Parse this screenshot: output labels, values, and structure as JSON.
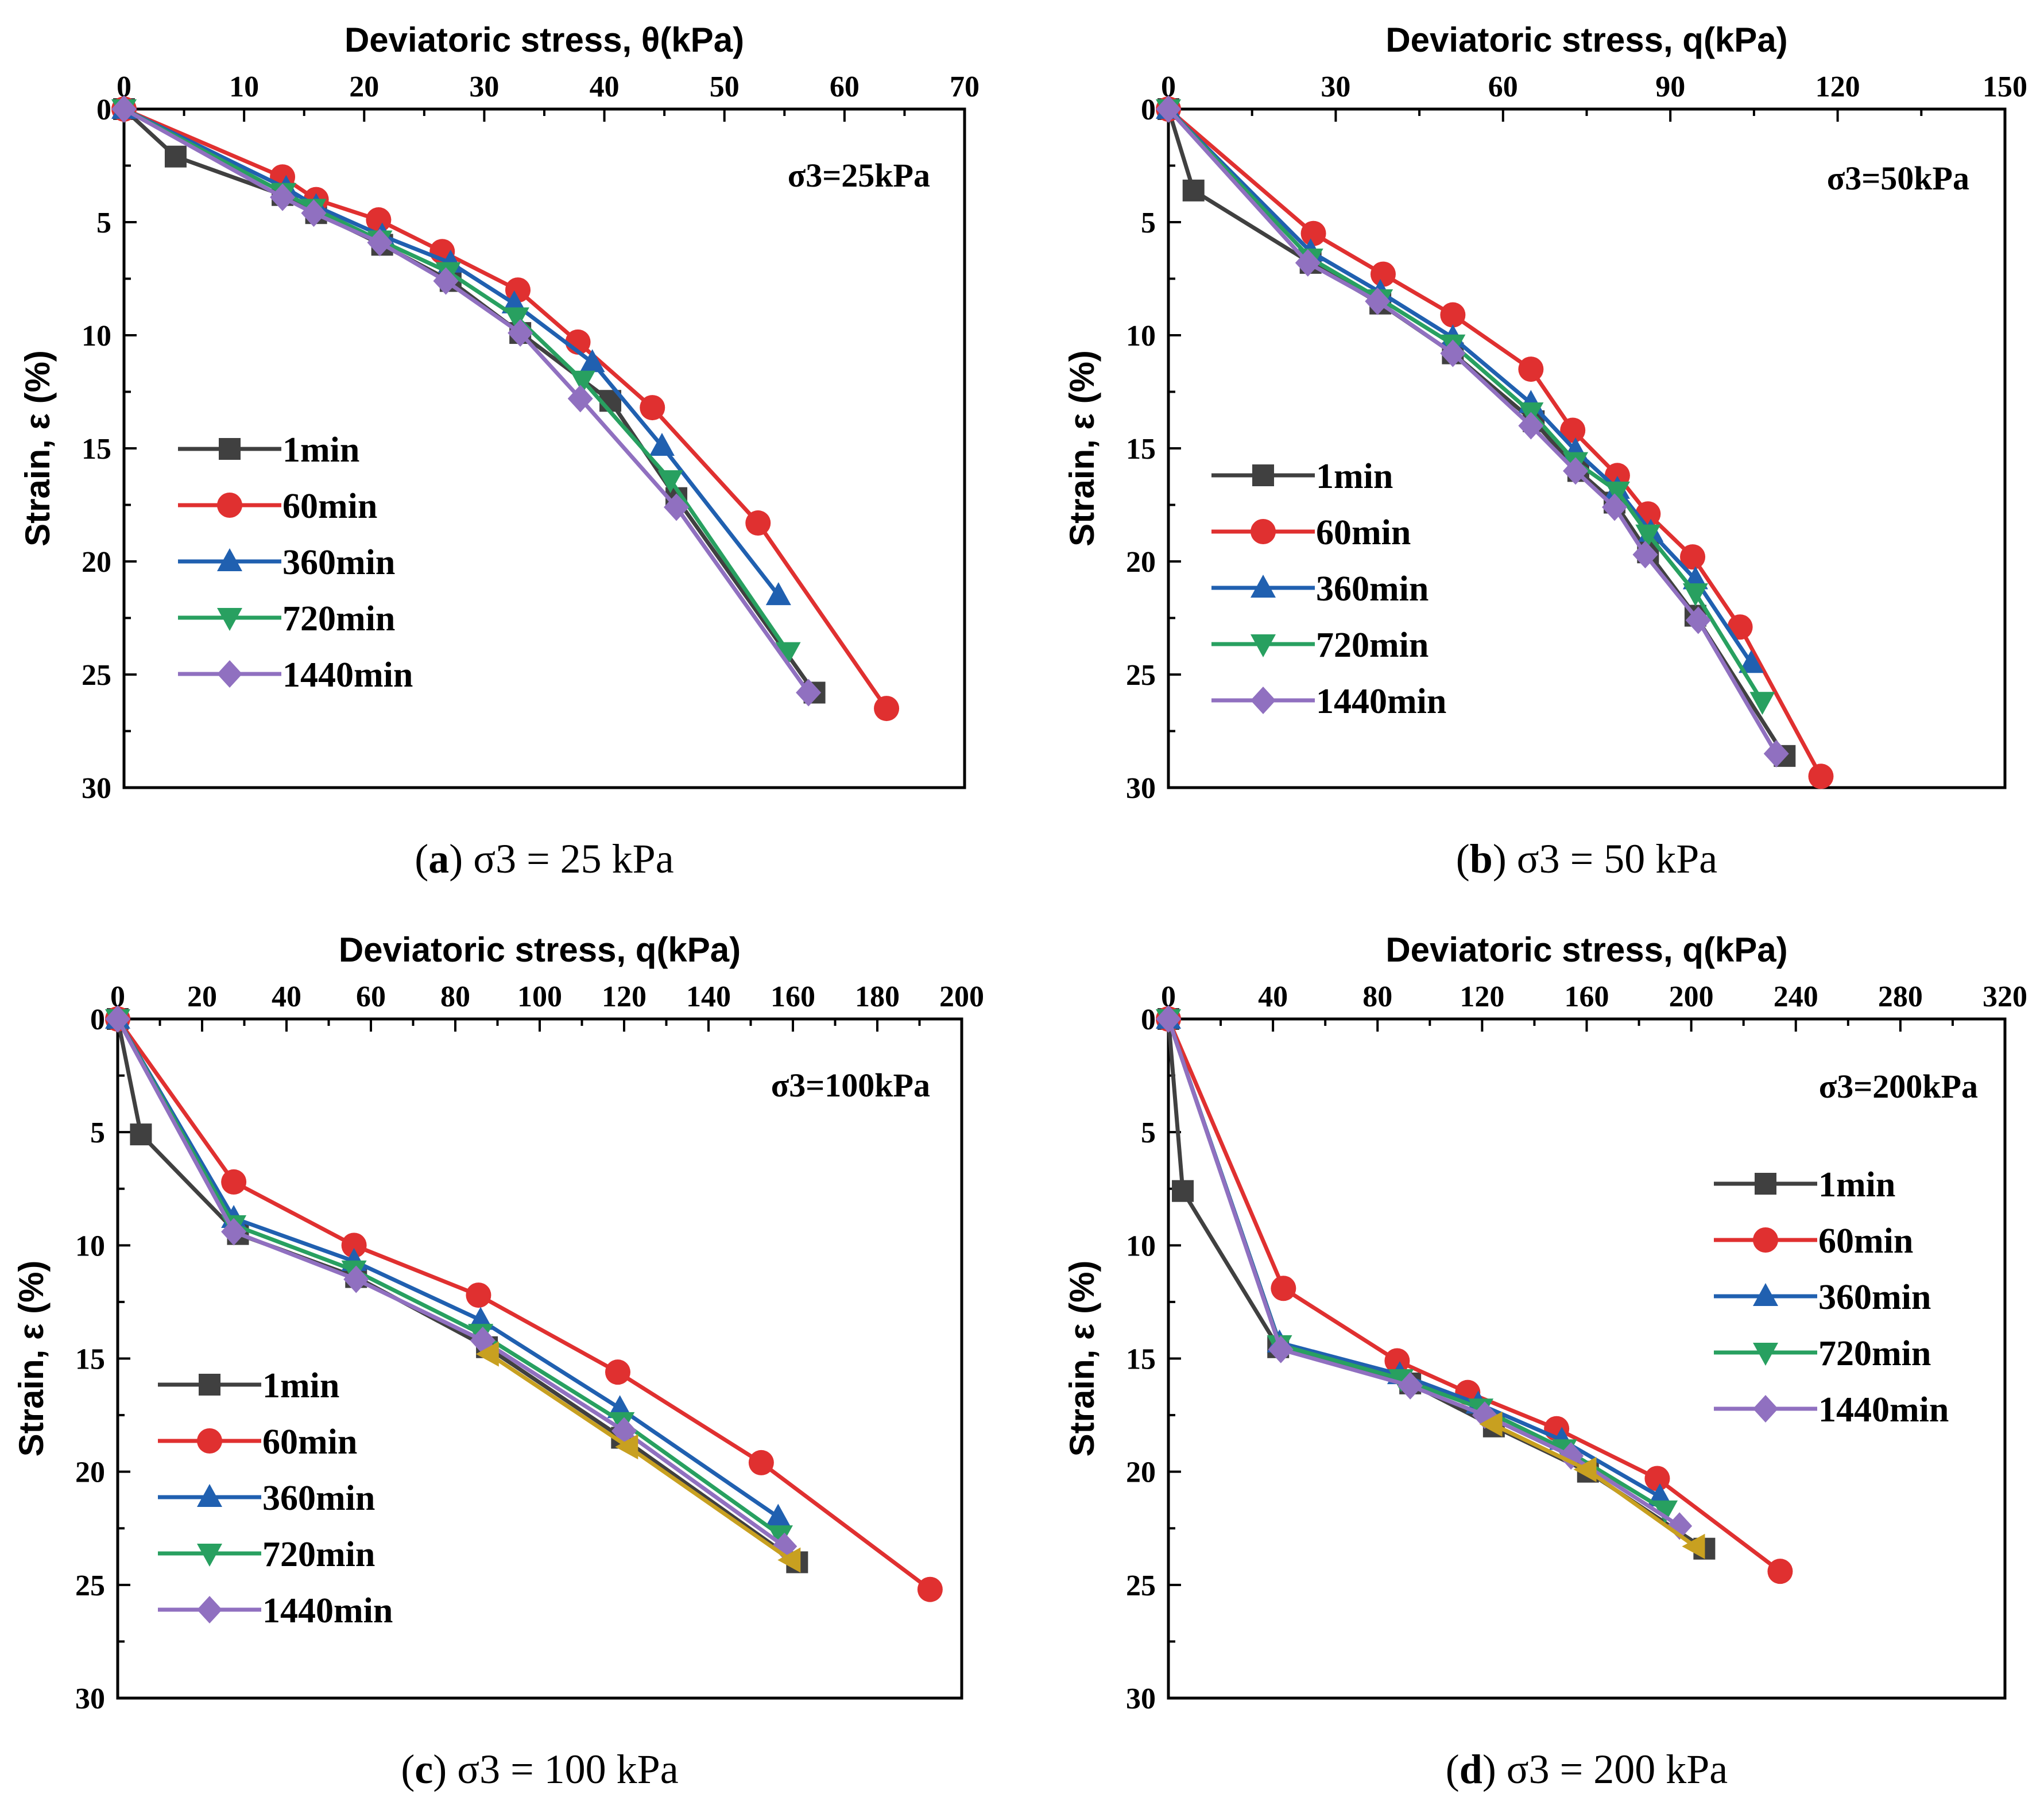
{
  "chart_data": [
    {
      "type": "line",
      "panel": "a",
      "caption": {
        "letter": "a",
        "text": "σ3 = 25 kPa"
      },
      "annotation": "σ3=25kPa",
      "xlabel": "Deviatoric stress, θ(kPa)",
      "ylabel": "Strain, ε (%)",
      "xlim": [
        0,
        70
      ],
      "xticks": [
        0,
        10,
        20,
        30,
        40,
        50,
        60,
        70
      ],
      "xminor": 5,
      "ylim": [
        0,
        30
      ],
      "yticks": [
        0,
        5,
        10,
        15,
        20,
        25,
        30
      ],
      "yminor": 2.5,
      "legend_position": "middle-left",
      "series": [
        {
          "name": "1min",
          "color": "#404040",
          "marker": "square",
          "x": [
            0,
            4.3,
            13.2,
            16.0,
            21.5,
            27.2,
            33.0,
            40.5,
            46.0,
            57.5
          ],
          "y": [
            0,
            2.1,
            3.8,
            4.6,
            6.0,
            7.6,
            9.9,
            12.9,
            17.2,
            25.8
          ]
        },
        {
          "name": "60min",
          "color": "#e03030",
          "marker": "circle",
          "x": [
            0,
            13.2,
            16.0,
            21.2,
            26.5,
            32.8,
            37.8,
            44.0,
            52.8,
            63.5
          ],
          "y": [
            0,
            3.0,
            4.0,
            4.9,
            6.3,
            8.0,
            10.3,
            13.2,
            18.3,
            26.5
          ]
        },
        {
          "name": "360min",
          "color": "#2060b0",
          "marker": "triangle-up",
          "x": [
            0,
            13.5,
            16.0,
            21.5,
            27.2,
            32.5,
            39.0,
            44.8,
            54.5
          ],
          "y": [
            0,
            3.5,
            4.3,
            5.6,
            6.8,
            8.6,
            11.2,
            14.9,
            21.5
          ]
        },
        {
          "name": "720min",
          "color": "#28a060",
          "marker": "triangle-down",
          "x": [
            0,
            13.3,
            15.8,
            21.3,
            27.0,
            32.7,
            38.2,
            45.5,
            55.3
          ],
          "y": [
            0,
            3.7,
            4.4,
            5.8,
            7.2,
            9.2,
            12.0,
            16.4,
            24.0
          ]
        },
        {
          "name": "1440min",
          "color": "#9070c0",
          "marker": "diamond",
          "x": [
            0,
            13.2,
            15.8,
            21.3,
            26.8,
            33.0,
            38.0,
            46.0,
            57.0
          ],
          "y": [
            0,
            3.9,
            4.6,
            5.9,
            7.6,
            9.9,
            12.8,
            17.6,
            25.8
          ]
        }
      ]
    },
    {
      "type": "line",
      "panel": "b",
      "caption": {
        "letter": "b",
        "text": "σ3 = 50 kPa"
      },
      "annotation": "σ3=50kPa",
      "xlabel": "Deviatoric stress, q(kPa)",
      "ylabel": "Strain, ε (%)",
      "xlim": [
        0,
        150
      ],
      "xticks": [
        0,
        30,
        60,
        90,
        120,
        150
      ],
      "xminor": 15,
      "ylim": [
        0,
        30
      ],
      "yticks": [
        0,
        5,
        10,
        15,
        20,
        25,
        30
      ],
      "yminor": 2.5,
      "legend_position": "middle-left",
      "series": [
        {
          "name": "1min",
          "color": "#404040",
          "marker": "square",
          "x": [
            0,
            4.5,
            25.5,
            38.0,
            51.0,
            65.5,
            73.5,
            80.0,
            86.0,
            94.5,
            110.5
          ],
          "y": [
            0,
            3.6,
            6.8,
            8.6,
            10.8,
            13.8,
            16.0,
            17.4,
            19.6,
            22.4,
            28.6
          ]
        },
        {
          "name": "60min",
          "color": "#e03030",
          "marker": "circle",
          "x": [
            0,
            26.0,
            38.5,
            51.0,
            65.0,
            72.5,
            80.5,
            86.0,
            94.0,
            102.5,
            117.0
          ],
          "y": [
            0,
            5.5,
            7.3,
            9.1,
            11.5,
            14.2,
            16.2,
            17.9,
            19.8,
            22.9,
            29.5
          ]
        },
        {
          "name": "360min",
          "color": "#2060b0",
          "marker": "triangle-up",
          "x": [
            0,
            25.5,
            38.0,
            51.0,
            65.0,
            73.0,
            80.5,
            86.5,
            94.5,
            104.5
          ],
          "y": [
            0,
            6.3,
            8.1,
            10.1,
            13.0,
            15.1,
            16.8,
            18.7,
            20.8,
            24.5
          ]
        },
        {
          "name": "720min",
          "color": "#28a060",
          "marker": "triangle-down",
          "x": [
            0,
            25.5,
            38.0,
            51.0,
            65.0,
            73.0,
            80.5,
            86.0,
            94.5,
            106.5
          ],
          "y": [
            0,
            6.6,
            8.4,
            10.4,
            13.4,
            15.6,
            16.9,
            18.8,
            21.4,
            26.2
          ]
        },
        {
          "name": "1440min",
          "color": "#9070c0",
          "marker": "diamond",
          "x": [
            0,
            25.0,
            37.5,
            51.0,
            65.0,
            73.0,
            80.0,
            85.5,
            95.0,
            109.0
          ],
          "y": [
            0,
            6.8,
            8.5,
            10.8,
            14.0,
            16.0,
            17.6,
            19.7,
            22.6,
            28.5
          ]
        }
      ]
    },
    {
      "type": "line",
      "panel": "c",
      "caption": {
        "letter": "c",
        "text": "σ3 = 100 kPa"
      },
      "annotation": "σ3=100kPa",
      "xlabel": "Deviatoric stress, q(kPa)",
      "ylabel": "Strain, ε (%)",
      "xlim": [
        0,
        200
      ],
      "xticks": [
        0,
        20,
        40,
        60,
        80,
        100,
        120,
        140,
        160,
        180,
        200
      ],
      "xminor": 10,
      "ylim": [
        0,
        30
      ],
      "yticks": [
        0,
        5,
        10,
        15,
        20,
        25,
        30
      ],
      "yminor": 2.5,
      "legend_position": "bottom-left",
      "series": [
        {
          "name": "1min",
          "color": "#404040",
          "marker": "square",
          "x": [
            0,
            5.5,
            28.5,
            56.5,
            87.5,
            119.5,
            161.0
          ],
          "y": [
            0,
            5.1,
            9.5,
            11.4,
            14.5,
            18.5,
            24.0
          ]
        },
        {
          "name": "60min",
          "color": "#e03030",
          "marker": "circle",
          "x": [
            0,
            27.5,
            56.0,
            85.5,
            118.5,
            152.5,
            192.5
          ],
          "y": [
            0,
            7.2,
            10.0,
            12.2,
            15.6,
            19.6,
            25.2
          ]
        },
        {
          "name": "360min",
          "color": "#2060b0",
          "marker": "triangle-up",
          "x": [
            0,
            27.5,
            56.0,
            86.0,
            119.0,
            156.5
          ],
          "y": [
            0,
            8.8,
            10.7,
            13.3,
            17.2,
            22.0
          ]
        },
        {
          "name": "720min",
          "color": "#28a060",
          "marker": "triangle-down",
          "x": [
            0,
            27.5,
            56.0,
            86.0,
            119.5,
            157.0
          ],
          "y": [
            0,
            9.1,
            11.1,
            13.9,
            17.8,
            22.8
          ]
        },
        {
          "name": "1440min",
          "color": "#9070c0",
          "marker": "diamond",
          "x": [
            0,
            27.5,
            56.5,
            86.5,
            120.0,
            158.0
          ],
          "y": [
            0,
            9.4,
            11.5,
            14.2,
            18.2,
            23.3
          ]
        },
        {
          "name": "",
          "color": "#c8a020",
          "marker": "triangle-left",
          "x": [
            88.0,
            121.0,
            159.5
          ],
          "y": [
            14.8,
            18.9,
            23.9
          ]
        }
      ]
    },
    {
      "type": "line",
      "panel": "d",
      "caption": {
        "letter": "d",
        "text": "σ3 = 200 kPa"
      },
      "annotation": "σ3=200kPa",
      "xlabel": "Deviatoric stress, q(kPa)",
      "ylabel": "Strain, ε (%)",
      "xlim": [
        0,
        320
      ],
      "xticks": [
        0,
        40,
        80,
        120,
        160,
        200,
        240,
        280,
        320
      ],
      "xminor": 20,
      "ylim": [
        0,
        30
      ],
      "yticks": [
        0,
        5,
        10,
        15,
        20,
        25,
        30
      ],
      "yminor": 2.5,
      "legend_position": "middle-right",
      "series": [
        {
          "name": "1min",
          "color": "#404040",
          "marker": "square",
          "x": [
            0,
            5.5,
            42.0,
            92.5,
            124.5,
            160.5,
            205.0
          ],
          "y": [
            0,
            7.6,
            14.5,
            16.1,
            18.0,
            20.0,
            23.4
          ]
        },
        {
          "name": "60min",
          "color": "#e03030",
          "marker": "circle",
          "x": [
            0,
            44.0,
            87.5,
            114.5,
            148.5,
            187.0,
            234.0
          ],
          "y": [
            0,
            11.9,
            15.1,
            16.5,
            18.1,
            20.3,
            24.4
          ]
        },
        {
          "name": "360min",
          "color": "#2060b0",
          "marker": "triangle-up",
          "x": [
            0,
            42.5,
            88.5,
            118.5,
            150.5,
            188.0
          ],
          "y": [
            0,
            14.3,
            15.7,
            17.0,
            18.6,
            21.1
          ]
        },
        {
          "name": "720min",
          "color": "#28a060",
          "marker": "triangle-down",
          "x": [
            0,
            42.5,
            89.0,
            119.5,
            151.5,
            190.0
          ],
          "y": [
            0,
            14.4,
            15.9,
            17.2,
            19.0,
            21.7
          ]
        },
        {
          "name": "1440min",
          "color": "#9070c0",
          "marker": "diamond",
          "x": [
            0,
            43.0,
            92.5,
            121.0,
            154.0,
            195.5
          ],
          "y": [
            0,
            14.6,
            16.2,
            17.5,
            19.3,
            22.4
          ]
        },
        {
          "name": "",
          "color": "#c8a020",
          "marker": "triangle-left",
          "x": [
            124.0,
            160.0,
            201.5
          ],
          "y": [
            17.9,
            19.9,
            23.3
          ]
        }
      ]
    }
  ]
}
